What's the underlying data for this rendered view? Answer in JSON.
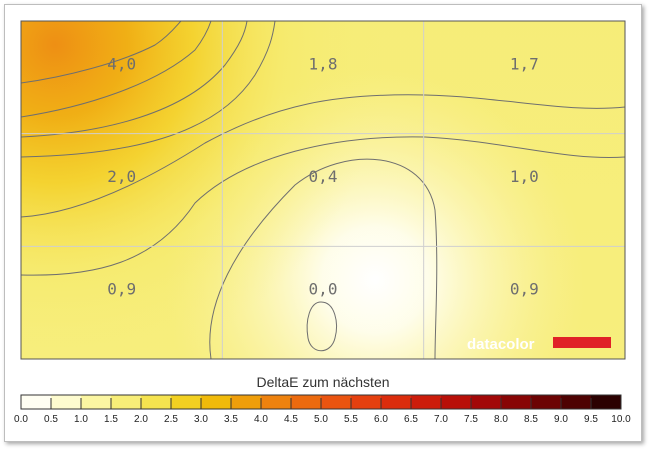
{
  "chart_data": {
    "type": "heatmap",
    "title": "",
    "rows": 3,
    "cols": 3,
    "values": [
      [
        "4,0",
        "1,8",
        "1,7"
      ],
      [
        "2,0",
        "0,4",
        "1,0"
      ],
      [
        "0,9",
        "0,0",
        "0,9"
      ]
    ],
    "grid": true,
    "contours": true,
    "legend": {
      "title": "DeltaE zum nächsten",
      "min": 0.0,
      "max": 10.0,
      "ticks": [
        "0.0",
        "0.5",
        "1.0",
        "1.5",
        "2.0",
        "2.5",
        "3.0",
        "3.5",
        "4.0",
        "4.5",
        "5.0",
        "5.5",
        "6.0",
        "6.5",
        "7.0",
        "7.5",
        "8.0",
        "8.5",
        "9.0",
        "9.5",
        "10.0"
      ],
      "colors": [
        "#fffef2",
        "#fdfbcf",
        "#fbf6a2",
        "#f8ee78",
        "#f5e34f",
        "#f2d021",
        "#f0ba0a",
        "#ef9e0a",
        "#ee820e",
        "#ec6a0e",
        "#ea5410",
        "#e5400f",
        "#db2c0c",
        "#cc1c0b",
        "#b80f08",
        "#a20808",
        "#880505",
        "#6c0303",
        "#4e0202",
        "#2b0101"
      ]
    },
    "colorscale": "white-yellow-orange-red-black"
  },
  "brand": {
    "name": "datacolor",
    "color": "#e02127"
  }
}
